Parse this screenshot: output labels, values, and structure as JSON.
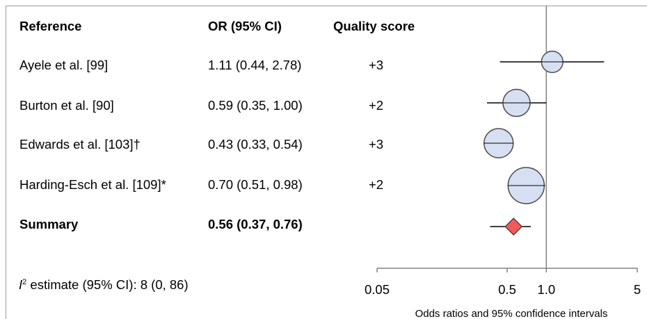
{
  "headers": {
    "reference": "Reference",
    "or": "OR (95% CI)",
    "quality": "Quality score"
  },
  "rows": [
    {
      "reference": "Ayele et al. [99]",
      "or_text": "1.11 (0.44, 2.78)",
      "quality": "+3"
    },
    {
      "reference": "Burton et al. [90]",
      "or_text": "0.59 (0.35, 1.00)",
      "quality": "+2"
    },
    {
      "reference": "Edwards et al. [103]†",
      "or_text": "0.43 (0.33, 0.54)",
      "quality": "+3"
    },
    {
      "reference": "Harding-Esch et al. [109]*",
      "or_text": "0.70 (0.51, 0.98)",
      "quality": "+2"
    }
  ],
  "summary": {
    "reference": "Summary",
    "or_text": "0.56 (0.37, 0.76)"
  },
  "heterogeneity": {
    "symbol": "I",
    "superscript": "2",
    "text": " estimate (95% CI):  8 (0, 86)"
  },
  "colors": {
    "study_marker_fill": "#d6e0f2",
    "summary_marker_fill": "#f05a5a",
    "line": "#000000",
    "reference_line": "#808080"
  },
  "chart_data": {
    "type": "forest",
    "x_scale": "log",
    "xlim": [
      0.05,
      5
    ],
    "reference_value": 1.0,
    "xticks": [
      0.05,
      0.5,
      1.0,
      5
    ],
    "xtick_labels": [
      "0.05",
      "0.5",
      "1.0",
      "5"
    ],
    "xlabel": "Odds ratios and 95% confidence intervals",
    "studies": [
      {
        "name": "Ayele et al. [99]",
        "or": 1.11,
        "lower": 0.44,
        "upper": 2.78,
        "weight": 0.09
      },
      {
        "name": "Burton et al. [90]",
        "or": 0.59,
        "lower": 0.35,
        "upper": 1.0,
        "weight": 0.2
      },
      {
        "name": "Edwards et al. [103]†",
        "or": 0.43,
        "lower": 0.33,
        "upper": 0.54,
        "weight": 0.25
      },
      {
        "name": "Harding-Esch et al. [109]*",
        "or": 0.7,
        "lower": 0.51,
        "upper": 0.98,
        "weight": 0.46
      }
    ],
    "summary": {
      "name": "Summary",
      "or": 0.56,
      "lower": 0.37,
      "upper": 0.76
    }
  }
}
